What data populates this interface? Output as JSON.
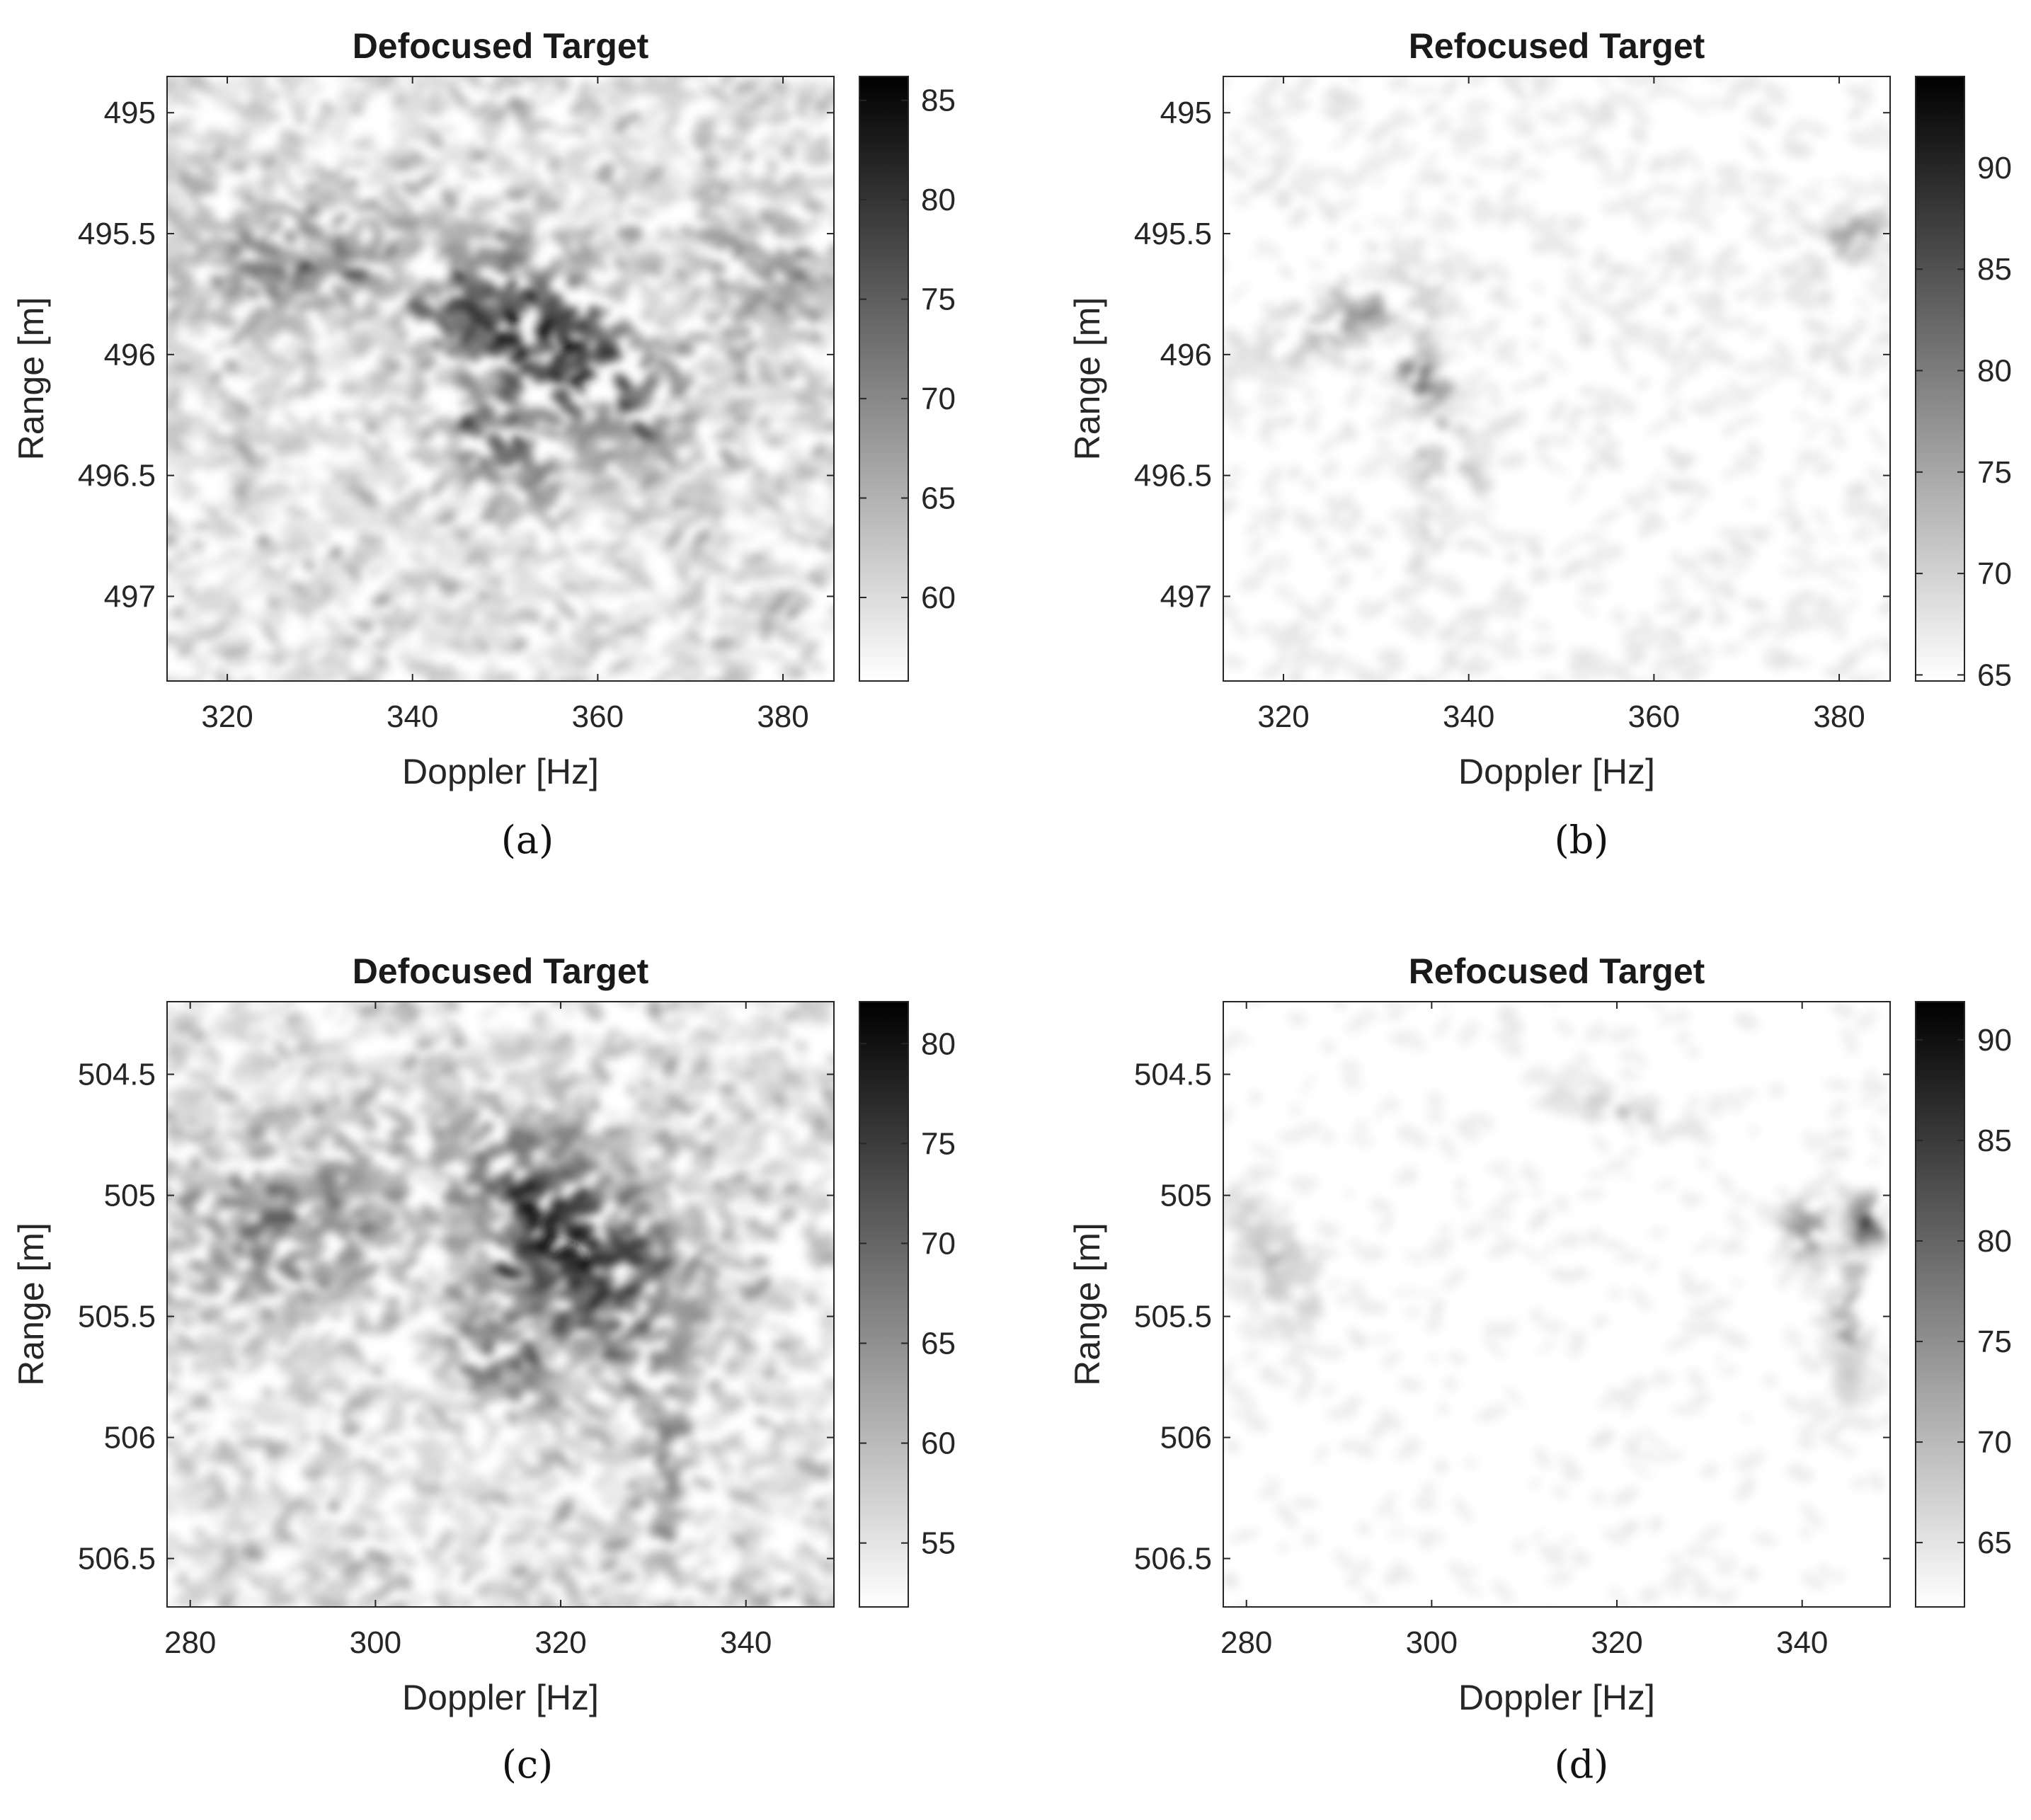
{
  "chart_data": [
    {
      "type": "heatmap",
      "panel": "a",
      "title": "Defocused Target",
      "xlabel": "Doppler [Hz]",
      "ylabel": "Range [m]",
      "xlim": [
        313.5,
        385.5
      ],
      "ylim": [
        494.85,
        497.35
      ],
      "xticks": [
        320,
        340,
        360,
        380
      ],
      "yticks": [
        "495",
        "495.5",
        "496",
        "496.5",
        "497"
      ],
      "colorbar": {
        "min": 55.8,
        "max": 86.2,
        "ticks": [
          60,
          65,
          70,
          75,
          80,
          85
        ]
      },
      "colormap": [
        "#ffffff",
        "#000000"
      ],
      "noise": 0.42,
      "blobs": [
        {
          "x": 354,
          "y": 495.95,
          "rx": 7.5,
          "ry": 0.55,
          "rot": -55,
          "amp": 1.0
        },
        {
          "x": 349,
          "y": 496.35,
          "rx": 4.5,
          "ry": 0.3,
          "rot": -55,
          "amp": 0.7
        },
        {
          "x": 327,
          "y": 495.6,
          "rx": 12,
          "ry": 0.3,
          "rot": 0,
          "amp": 0.45
        },
        {
          "x": 378,
          "y": 495.7,
          "rx": 8,
          "ry": 0.4,
          "rot": 0,
          "amp": 0.3
        }
      ]
    },
    {
      "type": "heatmap",
      "panel": "b",
      "title": "Refocused Target",
      "xlabel": "Doppler [Hz]",
      "ylabel": "Range [m]",
      "xlim": [
        313.5,
        385.5
      ],
      "ylim": [
        494.85,
        497.35
      ],
      "xticks": [
        320,
        340,
        360,
        380
      ],
      "yticks": [
        "495",
        "495.5",
        "496",
        "496.5",
        "497"
      ],
      "colorbar": {
        "min": 64.7,
        "max": 94.5,
        "ticks": [
          65,
          70,
          75,
          80,
          85,
          90
        ]
      },
      "colormap": [
        "#ffffff",
        "#000000"
      ],
      "noise": 0.14,
      "blobs": [
        {
          "x": 335,
          "y": 496.1,
          "rx": 1.6,
          "ry": 0.1,
          "rot": -35,
          "amp": 1.0
        },
        {
          "x": 337.5,
          "y": 496.35,
          "rx": 1.6,
          "ry": 0.18,
          "rot": -35,
          "amp": 0.55
        },
        {
          "x": 327,
          "y": 495.85,
          "rx": 9,
          "ry": 0.1,
          "rot": -22,
          "amp": 0.45
        },
        {
          "x": 335.5,
          "y": 496.3,
          "rx": 1.2,
          "ry": 0.55,
          "rot": 0,
          "amp": 0.35
        },
        {
          "x": 382,
          "y": 495.5,
          "rx": 4.5,
          "ry": 0.08,
          "rot": -25,
          "amp": 0.45
        }
      ]
    },
    {
      "type": "heatmap",
      "panel": "c",
      "title": "Defocused Target",
      "xlabel": "Doppler [Hz]",
      "ylabel": "Range [m]",
      "xlim": [
        277.5,
        349.5
      ],
      "ylim": [
        504.2,
        506.7
      ],
      "xticks": [
        280,
        300,
        320,
        340
      ],
      "yticks": [
        "504.5",
        "505",
        "505.5",
        "506",
        "506.5"
      ],
      "colorbar": {
        "min": 51.8,
        "max": 82.1,
        "ticks": [
          55,
          60,
          65,
          70,
          75,
          80
        ]
      },
      "colormap": [
        "#ffffff",
        "#000000"
      ],
      "noise": 0.42,
      "blobs": [
        {
          "x": 321,
          "y": 505.2,
          "rx": 8.5,
          "ry": 0.55,
          "rot": -45,
          "amp": 1.0
        },
        {
          "x": 314,
          "y": 505.65,
          "rx": 4,
          "ry": 0.3,
          "rot": -45,
          "amp": 0.65
        },
        {
          "x": 292,
          "y": 505.1,
          "rx": 14,
          "ry": 0.35,
          "rot": 0,
          "amp": 0.45
        },
        {
          "x": 331,
          "y": 505.9,
          "rx": 3,
          "ry": 0.8,
          "rot": 0,
          "amp": 0.35
        }
      ]
    },
    {
      "type": "heatmap",
      "panel": "d",
      "title": "Refocused Target",
      "xlabel": "Doppler [Hz]",
      "ylabel": "Range [m]",
      "xlim": [
        277.5,
        349.5
      ],
      "ylim": [
        504.2,
        506.7
      ],
      "xticks": [
        280,
        300,
        320,
        340
      ],
      "yticks": [
        "504.5",
        "505",
        "505.5",
        "506",
        "506.5"
      ],
      "colorbar": {
        "min": 61.8,
        "max": 91.9,
        "ticks": [
          65,
          70,
          75,
          80,
          85,
          90
        ]
      },
      "colormap": [
        "#ffffff",
        "#000000"
      ],
      "noise": 0.1,
      "blobs": [
        {
          "x": 346.5,
          "y": 505.12,
          "rx": 1.6,
          "ry": 0.1,
          "rot": 0,
          "amp": 1.0
        },
        {
          "x": 340.5,
          "y": 505.15,
          "rx": 1.8,
          "ry": 0.12,
          "rot": 0,
          "amp": 0.75
        },
        {
          "x": 345,
          "y": 505.45,
          "rx": 1.5,
          "ry": 0.35,
          "rot": 0,
          "amp": 0.45
        },
        {
          "x": 320,
          "y": 504.65,
          "rx": 6,
          "ry": 0.06,
          "rot": 15,
          "amp": 0.25
        },
        {
          "x": 283,
          "y": 505.3,
          "rx": 4,
          "ry": 0.3,
          "rot": -30,
          "amp": 0.25
        }
      ]
    }
  ],
  "captions": [
    "(a)",
    "(b)",
    "(c)",
    "(d)"
  ]
}
